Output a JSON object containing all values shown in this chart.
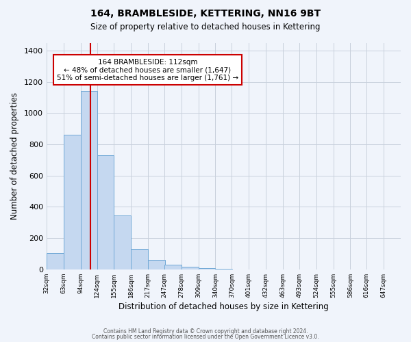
{
  "title": "164, BRAMBLESIDE, KETTERING, NN16 9BT",
  "subtitle": "Size of property relative to detached houses in Kettering",
  "xlabel": "Distribution of detached houses by size in Kettering",
  "ylabel": "Number of detached properties",
  "bar_values": [
    105,
    860,
    1140,
    730,
    345,
    130,
    60,
    30,
    15,
    10,
    5,
    0,
    0,
    0,
    0,
    0,
    0,
    0,
    0,
    0,
    0
  ],
  "bar_labels": [
    "32sqm",
    "63sqm",
    "94sqm",
    "124sqm",
    "155sqm",
    "186sqm",
    "217sqm",
    "247sqm",
    "278sqm",
    "309sqm",
    "340sqm",
    "370sqm",
    "401sqm",
    "432sqm",
    "463sqm",
    "493sqm",
    "524sqm",
    "555sqm",
    "586sqm",
    "616sqm",
    "647sqm"
  ],
  "bar_color": "#c5d8f0",
  "bar_edge_color": "#6fa8d6",
  "red_line_x": 112,
  "bin_starts": [
    32,
    63,
    94,
    124,
    155,
    186,
    217,
    247,
    278,
    309,
    340,
    370,
    401,
    432,
    463,
    493,
    524,
    555,
    586,
    616,
    647
  ],
  "bin_width": 31,
  "ylim": [
    0,
    1450
  ],
  "yticks": [
    0,
    200,
    400,
    600,
    800,
    1000,
    1200,
    1400
  ],
  "annotation_title": "164 BRAMBLESIDE: 112sqm",
  "annotation_line1": "← 48% of detached houses are smaller (1,647)",
  "annotation_line2": "51% of semi-detached houses are larger (1,761) →",
  "annotation_box_color": "#ffffff",
  "annotation_box_edge_color": "#cc0000",
  "red_line_color": "#cc0000",
  "footer_line1": "Contains HM Land Registry data © Crown copyright and database right 2024.",
  "footer_line2": "Contains public sector information licensed under the Open Government Licence v3.0.",
  "bg_color": "#f0f4fb",
  "grid_color": "#c8d0dc"
}
